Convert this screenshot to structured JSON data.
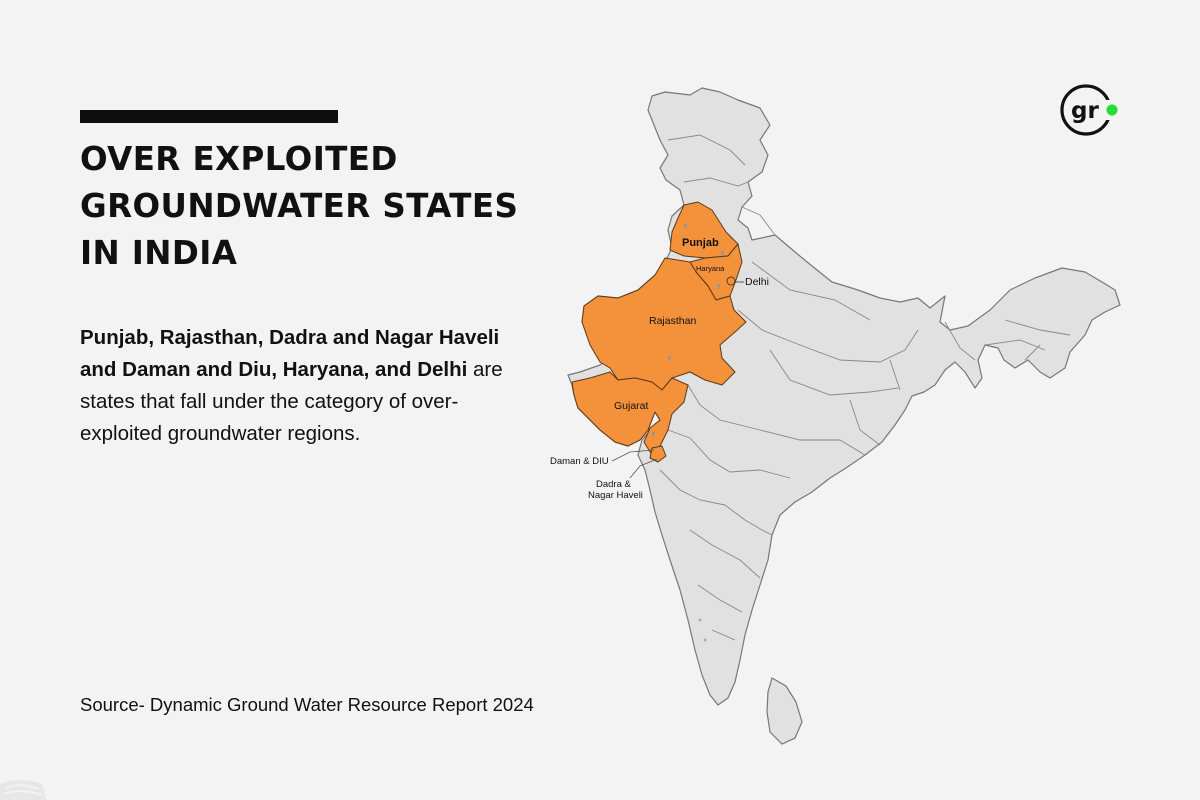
{
  "title_lines": [
    "OVER EXPLOITED",
    "GROUNDWATER STATES",
    "IN INDIA"
  ],
  "description": {
    "states_bold": [
      "Punjab",
      "Rajasthan",
      "Dadra and Nagar Haveli and Daman and Diu",
      "Haryana",
      "Delhi"
    ],
    "part1": "Punjab, Rajasthan, Dadra and Nagar Haveli and Daman and Diu, Haryana, and",
    "part2": "Delhi",
    "part3": " are states that fall under the category of over-exploited groundwater regions."
  },
  "source": "Source- Dynamic Ground Water Resource Report 2024",
  "logo_text": "gr",
  "map": {
    "highlight_color": "#f4913b",
    "base_color": "#e1e1e1",
    "border_color": "#777777",
    "accent_dot_color": "#22dd33",
    "labels": {
      "punjab": "Punjab",
      "haryana": "Haryana",
      "delhi": "Delhi",
      "rajasthan": "Rajasthan",
      "gujarat": "Gujarat",
      "daman": "Daman & DIU",
      "dadra_1": "Dadra &",
      "dadra_2": "Nagar Haveli"
    }
  }
}
